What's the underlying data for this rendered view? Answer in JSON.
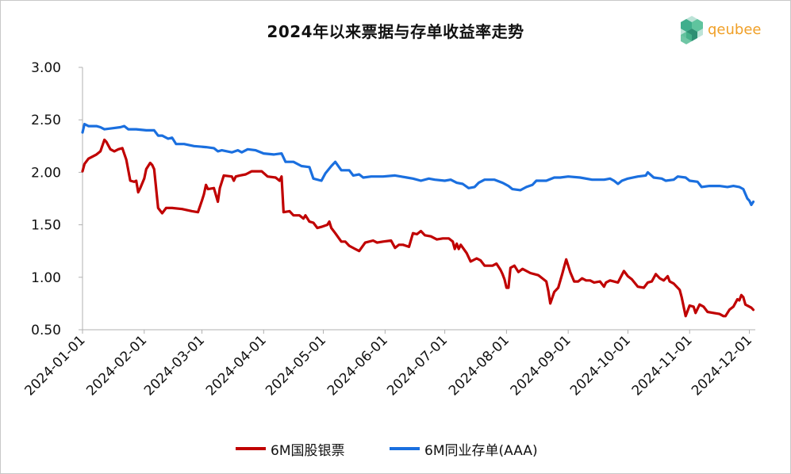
{
  "title": "2024年以来票据与存单收益率走势",
  "logo": {
    "text": "qeubee",
    "colors": {
      "text": "#f0a028",
      "mark": "#3fae8c"
    }
  },
  "chart_data": {
    "type": "line",
    "title": "2024年以来票据与存单收益率走势",
    "ylim": [
      0.5,
      3.0
    ],
    "yticks": [
      "3.00",
      "2.50",
      "2.00",
      "1.50",
      "1.00",
      "0.50"
    ],
    "xlim": [
      "2024-01-01",
      "2024-12-04"
    ],
    "xticks": [
      "2024-01-01",
      "2024-02-01",
      "2024-03-01",
      "2024-04-01",
      "2024-05-01",
      "2024-06-01",
      "2024-07-01",
      "2024-08-01",
      "2024-09-01",
      "2024-10-01",
      "2024-11-01",
      "2024-12-01"
    ],
    "grid": false,
    "legend_position": "bottom",
    "series": [
      {
        "name": "6M国股银票",
        "color": "#c00000",
        "points": [
          [
            "2024-01-01",
            2.01
          ],
          [
            "2024-01-02",
            2.08
          ],
          [
            "2024-01-04",
            2.13
          ],
          [
            "2024-01-08",
            2.17
          ],
          [
            "2024-01-10",
            2.2
          ],
          [
            "2024-01-12",
            2.31
          ],
          [
            "2024-01-13",
            2.29
          ],
          [
            "2024-01-15",
            2.22
          ],
          [
            "2024-01-17",
            2.2
          ],
          [
            "2024-01-19",
            2.22
          ],
          [
            "2024-01-21",
            2.23
          ],
          [
            "2024-01-23",
            2.12
          ],
          [
            "2024-01-25",
            1.92
          ],
          [
            "2024-01-27",
            1.91
          ],
          [
            "2024-01-28",
            1.92
          ],
          [
            "2024-01-29",
            1.81
          ],
          [
            "2024-01-30",
            1.85
          ],
          [
            "2024-02-01",
            1.94
          ],
          [
            "2024-02-02",
            2.03
          ],
          [
            "2024-02-04",
            2.09
          ],
          [
            "2024-02-05",
            2.07
          ],
          [
            "2024-02-06",
            2.03
          ],
          [
            "2024-02-08",
            1.66
          ],
          [
            "2024-02-10",
            1.61
          ],
          [
            "2024-02-12",
            1.66
          ],
          [
            "2024-02-15",
            1.66
          ],
          [
            "2024-02-20",
            1.65
          ],
          [
            "2024-02-25",
            1.63
          ],
          [
            "2024-02-28",
            1.62
          ],
          [
            "2024-03-01",
            1.73
          ],
          [
            "2024-03-02",
            1.79
          ],
          [
            "2024-03-03",
            1.88
          ],
          [
            "2024-03-04",
            1.84
          ],
          [
            "2024-03-07",
            1.85
          ],
          [
            "2024-03-09",
            1.72
          ],
          [
            "2024-03-10",
            1.85
          ],
          [
            "2024-03-12",
            1.97
          ],
          [
            "2024-03-16",
            1.96
          ],
          [
            "2024-03-17",
            1.92
          ],
          [
            "2024-03-18",
            1.96
          ],
          [
            "2024-03-20",
            1.97
          ],
          [
            "2024-03-23",
            1.98
          ],
          [
            "2024-03-26",
            2.01
          ],
          [
            "2024-03-31",
            2.01
          ],
          [
            "2024-04-03",
            1.96
          ],
          [
            "2024-04-07",
            1.95
          ],
          [
            "2024-04-09",
            1.92
          ],
          [
            "2024-04-10",
            1.96
          ],
          [
            "2024-04-11",
            1.62
          ],
          [
            "2024-04-14",
            1.63
          ],
          [
            "2024-04-16",
            1.59
          ],
          [
            "2024-04-19",
            1.59
          ],
          [
            "2024-04-21",
            1.56
          ],
          [
            "2024-04-22",
            1.59
          ],
          [
            "2024-04-24",
            1.53
          ],
          [
            "2024-04-26",
            1.52
          ],
          [
            "2024-04-28",
            1.47
          ],
          [
            "2024-04-30",
            1.48
          ],
          [
            "2024-05-03",
            1.5
          ],
          [
            "2024-05-04",
            1.53
          ],
          [
            "2024-05-05",
            1.47
          ],
          [
            "2024-05-07",
            1.42
          ],
          [
            "2024-05-10",
            1.34
          ],
          [
            "2024-05-12",
            1.34
          ],
          [
            "2024-05-14",
            1.3
          ],
          [
            "2024-05-17",
            1.27
          ],
          [
            "2024-05-19",
            1.25
          ],
          [
            "2024-05-22",
            1.33
          ],
          [
            "2024-05-26",
            1.35
          ],
          [
            "2024-05-28",
            1.33
          ],
          [
            "2024-05-31",
            1.34
          ],
          [
            "2024-06-04",
            1.35
          ],
          [
            "2024-06-06",
            1.28
          ],
          [
            "2024-06-08",
            1.31
          ],
          [
            "2024-06-10",
            1.31
          ],
          [
            "2024-06-13",
            1.29
          ],
          [
            "2024-06-15",
            1.42
          ],
          [
            "2024-06-17",
            1.41
          ],
          [
            "2024-06-19",
            1.44
          ],
          [
            "2024-06-21",
            1.4
          ],
          [
            "2024-06-24",
            1.39
          ],
          [
            "2024-06-27",
            1.36
          ],
          [
            "2024-06-30",
            1.37
          ],
          [
            "2024-07-03",
            1.37
          ],
          [
            "2024-07-05",
            1.34
          ],
          [
            "2024-07-06",
            1.27
          ],
          [
            "2024-07-07",
            1.32
          ],
          [
            "2024-07-08",
            1.27
          ],
          [
            "2024-07-09",
            1.31
          ],
          [
            "2024-07-12",
            1.23
          ],
          [
            "2024-07-14",
            1.15
          ],
          [
            "2024-07-17",
            1.18
          ],
          [
            "2024-07-19",
            1.16
          ],
          [
            "2024-07-21",
            1.11
          ],
          [
            "2024-07-25",
            1.11
          ],
          [
            "2024-07-27",
            1.13
          ],
          [
            "2024-07-29",
            1.07
          ],
          [
            "2024-07-30",
            1.03
          ],
          [
            "2024-07-31",
            0.98
          ],
          [
            "2024-08-01",
            0.9
          ],
          [
            "2024-08-02",
            0.9
          ],
          [
            "2024-08-03",
            1.09
          ],
          [
            "2024-08-05",
            1.11
          ],
          [
            "2024-08-07",
            1.05
          ],
          [
            "2024-08-09",
            1.08
          ],
          [
            "2024-08-13",
            1.04
          ],
          [
            "2024-08-17",
            1.02
          ],
          [
            "2024-08-19",
            0.99
          ],
          [
            "2024-08-21",
            0.96
          ],
          [
            "2024-08-22",
            0.87
          ],
          [
            "2024-08-23",
            0.75
          ],
          [
            "2024-08-25",
            0.86
          ],
          [
            "2024-08-27",
            0.9
          ],
          [
            "2024-08-29",
            1.03
          ],
          [
            "2024-08-30",
            1.1
          ],
          [
            "2024-08-31",
            1.17
          ],
          [
            "2024-09-02",
            1.05
          ],
          [
            "2024-09-04",
            0.96
          ],
          [
            "2024-09-06",
            0.96
          ],
          [
            "2024-09-08",
            0.99
          ],
          [
            "2024-09-10",
            0.97
          ],
          [
            "2024-09-12",
            0.97
          ],
          [
            "2024-09-14",
            0.95
          ],
          [
            "2024-09-17",
            0.96
          ],
          [
            "2024-09-19",
            0.91
          ],
          [
            "2024-09-20",
            0.95
          ],
          [
            "2024-09-22",
            0.97
          ],
          [
            "2024-09-26",
            0.95
          ],
          [
            "2024-09-29",
            1.06
          ],
          [
            "2024-10-01",
            1.01
          ],
          [
            "2024-10-03",
            0.98
          ],
          [
            "2024-10-06",
            0.91
          ],
          [
            "2024-10-09",
            0.9
          ],
          [
            "2024-10-11",
            0.95
          ],
          [
            "2024-10-13",
            0.96
          ],
          [
            "2024-10-15",
            1.03
          ],
          [
            "2024-10-17",
            0.99
          ],
          [
            "2024-10-19",
            0.97
          ],
          [
            "2024-10-21",
            1.01
          ],
          [
            "2024-10-22",
            0.96
          ],
          [
            "2024-10-24",
            0.94
          ],
          [
            "2024-10-27",
            0.88
          ],
          [
            "2024-10-28",
            0.81
          ],
          [
            "2024-10-30",
            0.63
          ],
          [
            "2024-11-01",
            0.73
          ],
          [
            "2024-11-03",
            0.72
          ],
          [
            "2024-11-04",
            0.66
          ],
          [
            "2024-11-06",
            0.74
          ],
          [
            "2024-11-08",
            0.72
          ],
          [
            "2024-11-10",
            0.67
          ],
          [
            "2024-11-13",
            0.66
          ],
          [
            "2024-11-16",
            0.65
          ],
          [
            "2024-11-18",
            0.63
          ],
          [
            "2024-11-19",
            0.63
          ],
          [
            "2024-11-21",
            0.69
          ],
          [
            "2024-11-23",
            0.72
          ],
          [
            "2024-11-25",
            0.79
          ],
          [
            "2024-11-26",
            0.78
          ],
          [
            "2024-11-27",
            0.83
          ],
          [
            "2024-11-28",
            0.81
          ],
          [
            "2024-11-29",
            0.74
          ],
          [
            "2024-12-02",
            0.71
          ],
          [
            "2024-12-03",
            0.69
          ]
        ]
      },
      {
        "name": "6M同业存单(AAA)",
        "color": "#1a6fdf",
        "points": [
          [
            "2024-01-01",
            2.38
          ],
          [
            "2024-01-02",
            2.46
          ],
          [
            "2024-01-04",
            2.44
          ],
          [
            "2024-01-08",
            2.44
          ],
          [
            "2024-01-10",
            2.43
          ],
          [
            "2024-01-12",
            2.41
          ],
          [
            "2024-01-16",
            2.42
          ],
          [
            "2024-01-20",
            2.43
          ],
          [
            "2024-01-22",
            2.44
          ],
          [
            "2024-01-24",
            2.41
          ],
          [
            "2024-01-28",
            2.41
          ],
          [
            "2024-02-02",
            2.4
          ],
          [
            "2024-02-06",
            2.4
          ],
          [
            "2024-02-08",
            2.35
          ],
          [
            "2024-02-10",
            2.35
          ],
          [
            "2024-02-13",
            2.32
          ],
          [
            "2024-02-15",
            2.33
          ],
          [
            "2024-02-17",
            2.27
          ],
          [
            "2024-02-21",
            2.27
          ],
          [
            "2024-02-26",
            2.25
          ],
          [
            "2024-03-03",
            2.24
          ],
          [
            "2024-03-07",
            2.23
          ],
          [
            "2024-03-09",
            2.2
          ],
          [
            "2024-03-11",
            2.21
          ],
          [
            "2024-03-16",
            2.19
          ],
          [
            "2024-03-19",
            2.21
          ],
          [
            "2024-03-21",
            2.19
          ],
          [
            "2024-03-24",
            2.22
          ],
          [
            "2024-03-28",
            2.21
          ],
          [
            "2024-04-01",
            2.18
          ],
          [
            "2024-04-06",
            2.17
          ],
          [
            "2024-04-10",
            2.18
          ],
          [
            "2024-04-12",
            2.1
          ],
          [
            "2024-04-16",
            2.1
          ],
          [
            "2024-04-20",
            2.06
          ],
          [
            "2024-04-24",
            2.05
          ],
          [
            "2024-04-26",
            1.94
          ],
          [
            "2024-04-30",
            1.92
          ],
          [
            "2024-05-02",
            1.99
          ],
          [
            "2024-05-05",
            2.06
          ],
          [
            "2024-05-07",
            2.1
          ],
          [
            "2024-05-10",
            2.02
          ],
          [
            "2024-05-14",
            2.02
          ],
          [
            "2024-05-16",
            1.97
          ],
          [
            "2024-05-19",
            1.98
          ],
          [
            "2024-05-21",
            1.95
          ],
          [
            "2024-05-25",
            1.96
          ],
          [
            "2024-05-31",
            1.96
          ],
          [
            "2024-06-06",
            1.97
          ],
          [
            "2024-06-09",
            1.96
          ],
          [
            "2024-06-12",
            1.95
          ],
          [
            "2024-06-15",
            1.94
          ],
          [
            "2024-06-19",
            1.92
          ],
          [
            "2024-06-23",
            1.94
          ],
          [
            "2024-06-26",
            1.93
          ],
          [
            "2024-07-01",
            1.92
          ],
          [
            "2024-07-04",
            1.93
          ],
          [
            "2024-07-07",
            1.9
          ],
          [
            "2024-07-10",
            1.89
          ],
          [
            "2024-07-13",
            1.85
          ],
          [
            "2024-07-16",
            1.86
          ],
          [
            "2024-07-18",
            1.9
          ],
          [
            "2024-07-21",
            1.93
          ],
          [
            "2024-07-26",
            1.93
          ],
          [
            "2024-07-30",
            1.9
          ],
          [
            "2024-08-02",
            1.87
          ],
          [
            "2024-08-04",
            1.84
          ],
          [
            "2024-08-08",
            1.83
          ],
          [
            "2024-08-11",
            1.86
          ],
          [
            "2024-08-14",
            1.88
          ],
          [
            "2024-08-16",
            1.92
          ],
          [
            "2024-08-21",
            1.92
          ],
          [
            "2024-08-25",
            1.95
          ],
          [
            "2024-08-28",
            1.95
          ],
          [
            "2024-09-01",
            1.96
          ],
          [
            "2024-09-07",
            1.95
          ],
          [
            "2024-09-13",
            1.93
          ],
          [
            "2024-09-19",
            1.93
          ],
          [
            "2024-09-22",
            1.94
          ],
          [
            "2024-09-24",
            1.92
          ],
          [
            "2024-09-26",
            1.89
          ],
          [
            "2024-09-28",
            1.92
          ],
          [
            "2024-10-01",
            1.94
          ],
          [
            "2024-10-06",
            1.96
          ],
          [
            "2024-10-10",
            1.97
          ],
          [
            "2024-10-11",
            2.0
          ],
          [
            "2024-10-14",
            1.95
          ],
          [
            "2024-10-18",
            1.94
          ],
          [
            "2024-10-20",
            1.92
          ],
          [
            "2024-10-24",
            1.93
          ],
          [
            "2024-10-26",
            1.96
          ],
          [
            "2024-10-30",
            1.95
          ],
          [
            "2024-11-01",
            1.92
          ],
          [
            "2024-11-05",
            1.91
          ],
          [
            "2024-11-07",
            1.86
          ],
          [
            "2024-11-11",
            1.87
          ],
          [
            "2024-11-16",
            1.87
          ],
          [
            "2024-11-20",
            1.86
          ],
          [
            "2024-11-23",
            1.87
          ],
          [
            "2024-11-26",
            1.86
          ],
          [
            "2024-11-28",
            1.84
          ],
          [
            "2024-11-30",
            1.75
          ],
          [
            "2024-12-01",
            1.73
          ],
          [
            "2024-12-02",
            1.69
          ],
          [
            "2024-12-03",
            1.72
          ]
        ]
      }
    ]
  }
}
